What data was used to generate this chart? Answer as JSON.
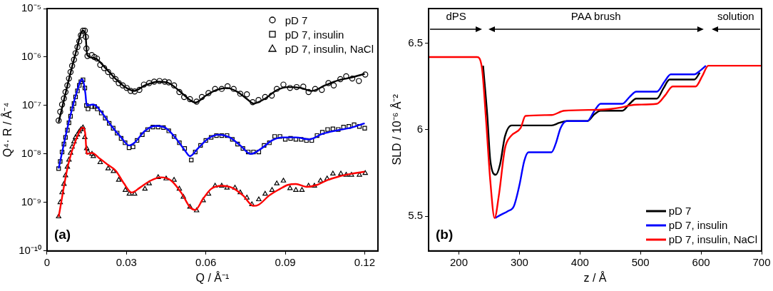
{
  "chart_data": [
    {
      "type": "scatter",
      "xlabel": "Q / Å⁻¹",
      "ylabel": "Q⁴· R / Å⁻⁴",
      "log": "y",
      "grid": false,
      "legend": "top right",
      "xlim": [
        0,
        0.125
      ],
      "xticks": [
        0,
        0.03,
        0.06,
        0.09,
        0.12
      ],
      "ylim": [
        1e-10,
        1e-05
      ],
      "yticks": [
        {
          "value": 1e-10,
          "label": "10⁻¹⁰"
        },
        {
          "value": 1e-09,
          "label": "10⁻⁹"
        },
        {
          "value": 1e-08,
          "label": "10⁻⁸"
        },
        {
          "value": 1e-07,
          "label": "10⁻⁷"
        },
        {
          "value": 1e-06,
          "label": "10⁻⁶"
        },
        {
          "value": 1e-05,
          "label": "10⁻⁵"
        }
      ],
      "annotations": [
        "(a)"
      ],
      "series": [
        {
          "name": "pD 7",
          "marker": "circle",
          "color": "#000000",
          "x": [
            0.0044,
            0.005,
            0.0057,
            0.0064,
            0.007,
            0.0077,
            0.0083,
            0.0089,
            0.0095,
            0.0102,
            0.0108,
            0.0115,
            0.0122,
            0.0128,
            0.0136,
            0.0143,
            0.0147,
            0.0149,
            0.0153,
            0.0169,
            0.0179,
            0.0189,
            0.0201,
            0.0216,
            0.0231,
            0.0246,
            0.0259,
            0.0271,
            0.0286,
            0.0301,
            0.0316,
            0.0331,
            0.0349,
            0.0366,
            0.0386,
            0.0405,
            0.0425,
            0.0445,
            0.046,
            0.048,
            0.05,
            0.0518,
            0.054,
            0.0565,
            0.0585,
            0.061,
            0.0635,
            0.066,
            0.0682,
            0.0705,
            0.073,
            0.0755,
            0.0777,
            0.0799,
            0.0824,
            0.0849,
            0.0868,
            0.0893,
            0.0918,
            0.0943,
            0.0968,
            0.0988,
            0.1013,
            0.1038,
            0.1063,
            0.1083,
            0.1108,
            0.113,
            0.1153,
            0.1178,
            0.1202
          ],
          "values": [
            4.9e-08,
            7.4e-08,
            1.05e-07,
            1.4e-07,
            1.9e-07,
            2.6e-07,
            3.6e-07,
            4.9e-07,
            6.6e-07,
            8.8e-07,
            1.2e-06,
            1.6e-06,
            2.1e-06,
            2.8e-06,
            3.5e-06,
            3.5e-06,
            2.6e-06,
            1.5e-06,
            1.05e-06,
            1.1e-06,
            1e-06,
            9.3e-07,
            6.9e-07,
            5.9e-07,
            4.9e-07,
            4.1e-07,
            3.5e-07,
            2.9e-07,
            2.6e-07,
            2.3e-07,
            2e-07,
            1.95e-07,
            2.1e-07,
            2.7e-07,
            2.9e-07,
            3.1e-07,
            3.2e-07,
            3.1e-07,
            3e-07,
            2.6e-07,
            1.9e-07,
            1.5e-07,
            1.35e-07,
            1.2e-07,
            1.5e-07,
            1.8e-07,
            2.2e-07,
            2.2e-07,
            2.5e-07,
            2.2e-07,
            1.75e-07,
            1.7e-07,
            1.17e-07,
            1.3e-07,
            1.5e-07,
            1.6e-07,
            2.2e-07,
            2.7e-07,
            2.3e-07,
            2.4e-07,
            2.45e-07,
            1.9e-07,
            2.2e-07,
            2.1e-07,
            2.9e-07,
            2.6e-07,
            3.5e-07,
            4e-07,
            3.6e-07,
            3.2e-07,
            4.35e-07
          ]
        },
        {
          "name": "pD 7, insulin",
          "marker": "square",
          "color": "#000000",
          "x": [
            0.0044,
            0.005,
            0.0057,
            0.0064,
            0.007,
            0.0077,
            0.0083,
            0.0089,
            0.0095,
            0.0102,
            0.0108,
            0.0115,
            0.0122,
            0.0128,
            0.0136,
            0.0143,
            0.0149,
            0.0155,
            0.017,
            0.018,
            0.019,
            0.0205,
            0.022,
            0.0235,
            0.025,
            0.0265,
            0.028,
            0.0295,
            0.031,
            0.0325,
            0.034,
            0.036,
            0.038,
            0.04,
            0.042,
            0.044,
            0.046,
            0.048,
            0.05,
            0.052,
            0.0545,
            0.056,
            0.058,
            0.06,
            0.062,
            0.064,
            0.066,
            0.068,
            0.07,
            0.072,
            0.074,
            0.076,
            0.078,
            0.08,
            0.082,
            0.084,
            0.086,
            0.088,
            0.09,
            0.092,
            0.094,
            0.096,
            0.098,
            0.1,
            0.102,
            0.104,
            0.106,
            0.108,
            0.11,
            0.112,
            0.114,
            0.116,
            0.118,
            0.12
          ],
          "values": [
            5e-09,
            7e-09,
            1.1e-08,
            1.6e-08,
            2.2e-08,
            3.1e-08,
            4.4e-08,
            6e-08,
            8.5e-08,
            1.1e-07,
            1.5e-07,
            2e-07,
            2.6e-07,
            3.1e-07,
            3.4e-07,
            2.3e-07,
            1e-07,
            8.5e-08,
            9.5e-08,
            9.5e-08,
            8.5e-08,
            7e-08,
            5.5e-08,
            4.3e-08,
            3.4e-08,
            2.7e-08,
            2.1e-08,
            1.7e-08,
            1.35e-08,
            1.4e-08,
            1.9e-08,
            2.5e-08,
            3.2e-08,
            3.6e-08,
            3.6e-08,
            3.5e-08,
            3e-08,
            2.3e-08,
            1.7e-08,
            1.3e-08,
            7.5e-09,
            1.1e-08,
            1.5e-08,
            1.9e-08,
            2.2e-08,
            2.4e-08,
            2.4e-08,
            2.4e-08,
            2e-08,
            1.6e-08,
            1.3e-08,
            1.1e-08,
            1.1e-08,
            1.1e-08,
            1.5e-08,
            1.7e-08,
            2.3e-08,
            2.3e-08,
            2e-08,
            2.1e-08,
            2e-08,
            2e-08,
            1.9e-08,
            1.9e-08,
            2.4e-08,
            2.8e-08,
            3.2e-08,
            3.3e-08,
            3.2e-08,
            3.6e-08,
            3.7e-08,
            4e-08,
            3.7e-08,
            3.4e-08
          ]
        },
        {
          "name": "pD 7, insulin, NaCl",
          "marker": "triangle",
          "color": "#000000",
          "x": [
            0.0044,
            0.005,
            0.0057,
            0.0064,
            0.007,
            0.0077,
            0.0083,
            0.0089,
            0.0095,
            0.0102,
            0.0108,
            0.0115,
            0.0122,
            0.0128,
            0.0136,
            0.0143,
            0.015,
            0.0155,
            0.017,
            0.0175,
            0.0201,
            0.0231,
            0.0251,
            0.0271,
            0.0296,
            0.0311,
            0.0331,
            0.037,
            0.0386,
            0.042,
            0.045,
            0.048,
            0.05,
            0.0515,
            0.054,
            0.0565,
            0.059,
            0.061,
            0.0635,
            0.066,
            0.068,
            0.071,
            0.073,
            0.0755,
            0.0774,
            0.08,
            0.0824,
            0.085,
            0.0868,
            0.0893,
            0.0918,
            0.094,
            0.0963,
            0.0988,
            0.101,
            0.1033,
            0.1058,
            0.108,
            0.111,
            0.113,
            0.115,
            0.118,
            0.1202
          ],
          "values": [
            5.1e-10,
            1e-09,
            1.6e-09,
            2.4e-09,
            3.6e-09,
            5.4e-09,
            7.6e-09,
            1.05e-08,
            1.4e-08,
            1.8e-08,
            2.2e-08,
            2.5e-08,
            2.9e-08,
            3.2e-08,
            3.5e-08,
            2.2e-08,
            1.3e-08,
            1.1e-08,
            1e-08,
            9e-09,
            6.7e-09,
            5e-09,
            4.4e-09,
            2.9e-09,
            1.8e-09,
            1.5e-09,
            1.5e-09,
            1.9e-09,
            2.45e-09,
            3.3e-09,
            3.1e-09,
            2.9e-09,
            1.9e-09,
            1.3e-09,
            8.1e-10,
            6.8e-10,
            1.1e-09,
            1.5e-09,
            2.2e-09,
            2.2e-09,
            2e-09,
            2e-09,
            1.6e-09,
            1.25e-09,
            9.1e-10,
            1.15e-09,
            1.5e-09,
            1.8e-09,
            2.45e-09,
            2.8e-09,
            1.95e-09,
            1.8e-09,
            1.8e-09,
            2.2e-09,
            2.2e-09,
            2.8e-09,
            3.1e-09,
            3.9e-09,
            3.9e-09,
            3.7e-09,
            3.7e-09,
            3.7e-09,
            4e-09
          ]
        },
        {
          "type": "line",
          "marker": "none",
          "color": "#000000",
          "x": [
            0.0044,
            0.008,
            0.011,
            0.0135,
            0.0145,
            0.0152,
            0.018,
            0.022,
            0.026,
            0.03,
            0.033,
            0.037,
            0.042,
            0.046,
            0.05,
            0.054,
            0.056,
            0.06,
            0.064,
            0.068,
            0.072,
            0.076,
            0.078,
            0.082,
            0.087,
            0.091,
            0.096,
            0.1,
            0.105,
            0.11,
            0.115,
            0.12
          ],
          "values": [
            4.5e-08,
            3e-07,
            1.3e-06,
            3.5e-06,
            3e-06,
            1.1e-06,
            9.5e-07,
            6e-07,
            3.5e-07,
            2.3e-07,
            2e-07,
            2.6e-07,
            3.1e-07,
            2.9e-07,
            2e-07,
            1.3e-07,
            1.15e-07,
            1.6e-07,
            2.1e-07,
            2.3e-07,
            1.9e-07,
            1.3e-07,
            1.1e-07,
            1.35e-07,
            2.1e-07,
            2.4e-07,
            2.3e-07,
            2e-07,
            2.6e-07,
            3.3e-07,
            3.8e-07,
            4.5e-07
          ]
        },
        {
          "type": "line",
          "marker": "none",
          "color": "#0000ff",
          "x": [
            0.0044,
            0.008,
            0.011,
            0.0133,
            0.0145,
            0.015,
            0.0175,
            0.02,
            0.024,
            0.028,
            0.031,
            0.033,
            0.037,
            0.041,
            0.045,
            0.049,
            0.052,
            0.054,
            0.057,
            0.061,
            0.065,
            0.069,
            0.073,
            0.077,
            0.081,
            0.085,
            0.089,
            0.094,
            0.099,
            0.104,
            0.11,
            0.115,
            0.12
          ],
          "values": [
            5e-09,
            4e-08,
            1.7e-07,
            3.5e-07,
            1.8e-07,
            1e-07,
            1.05e-07,
            8e-08,
            4e-08,
            2.2e-08,
            1.5e-08,
            1.7e-08,
            3e-08,
            3.8e-08,
            3.4e-08,
            2e-08,
            1.2e-08,
            9e-09,
            1.3e-08,
            2.1e-08,
            2.5e-08,
            2.2e-08,
            1.5e-08,
            1e-08,
            1.3e-08,
            1.9e-08,
            2.2e-08,
            2.2e-08,
            2e-08,
            2.6e-08,
            3.1e-08,
            3.5e-08,
            4.3e-08
          ]
        },
        {
          "type": "line",
          "marker": "none",
          "color": "#ff0000",
          "x": [
            0.0044,
            0.008,
            0.011,
            0.0135,
            0.0145,
            0.015,
            0.017,
            0.02,
            0.023,
            0.026,
            0.029,
            0.032,
            0.035,
            0.039,
            0.043,
            0.047,
            0.051,
            0.054,
            0.056,
            0.059,
            0.062,
            0.066,
            0.07,
            0.074,
            0.078,
            0.08,
            0.084,
            0.088,
            0.091,
            0.094,
            0.098,
            0.102,
            0.106,
            0.11,
            0.115,
            0.12
          ],
          "values": [
            5e-10,
            6e-09,
            2e-08,
            3.5e-08,
            2.5e-08,
            1e-08,
            1.05e-08,
            8e-09,
            6e-09,
            4.5e-09,
            2.5e-09,
            1.6e-09,
            2e-09,
            2.8e-09,
            3.3e-09,
            2.8e-09,
            1.5e-09,
            8e-10,
            7e-10,
            1.2e-09,
            1.9e-09,
            2.2e-09,
            2e-09,
            1.4e-09,
            8.5e-10,
            9e-10,
            1.4e-09,
            1.9e-09,
            2.3e-09,
            2.4e-09,
            2.1e-09,
            2.3e-09,
            2.9e-09,
            3.4e-09,
            3.9e-09,
            4.3e-09
          ]
        }
      ]
    },
    {
      "type": "line",
      "xlabel": "z / Å",
      "ylabel": "SLD / 10⁻⁶ Å⁻²",
      "grid": false,
      "legend": "bottom right",
      "xlim": [
        150,
        700
      ],
      "xticks": [
        200,
        300,
        400,
        500,
        600,
        700
      ],
      "ylim": [
        5.3,
        6.7
      ],
      "yticks": [
        5.5,
        6,
        6.5
      ],
      "annotations": [
        "(b)",
        "dPS",
        "PAA brush",
        "solution"
      ],
      "series": [
        {
          "name": "pD 7",
          "color": "#000000",
          "x": [
            240,
            247,
            252,
            261,
            268,
            276,
            287,
            353,
            366,
            378,
            412,
            424,
            434,
            470,
            482,
            493,
            527,
            538,
            548,
            589,
            598
          ],
          "values": [
            6.37,
            6.08,
            5.82,
            5.74,
            5.8,
            5.96,
            6.025,
            6.025,
            6.04,
            6.05,
            6.05,
            6.09,
            6.11,
            6.11,
            6.15,
            6.18,
            6.18,
            6.24,
            6.29,
            6.29,
            6.33
          ]
        },
        {
          "name": "pD 7, insulin",
          "color": "#0000ff",
          "x": [
            260,
            270,
            281,
            291,
            300,
            308,
            315,
            353,
            360,
            368,
            378,
            412,
            424,
            434,
            470,
            482,
            493,
            527,
            540,
            550,
            589,
            598,
            608
          ],
          "values": [
            5.49,
            5.51,
            5.53,
            5.56,
            5.68,
            5.82,
            5.87,
            5.87,
            5.92,
            6.01,
            6.05,
            6.05,
            6.11,
            6.15,
            6.15,
            6.19,
            6.22,
            6.22,
            6.28,
            6.32,
            6.32,
            6.34,
            6.37
          ]
        },
        {
          "name": "pD 7, insulin, NaCl",
          "color": "#ff0000",
          "x": [
            150,
            230,
            238,
            245,
            252,
            259,
            266,
            276,
            285,
            302,
            310,
            353,
            374,
            430,
            451,
            470,
            482,
            495,
            527,
            541,
            553,
            591,
            602,
            612,
            700
          ],
          "values": [
            6.42,
            6.42,
            6.36,
            6.05,
            5.7,
            5.49,
            5.62,
            5.89,
            5.96,
            6.01,
            6.08,
            6.085,
            6.11,
            6.115,
            6.12,
            6.13,
            6.14,
            6.145,
            6.15,
            6.2,
            6.25,
            6.25,
            6.31,
            6.37,
            6.37
          ]
        }
      ]
    }
  ]
}
